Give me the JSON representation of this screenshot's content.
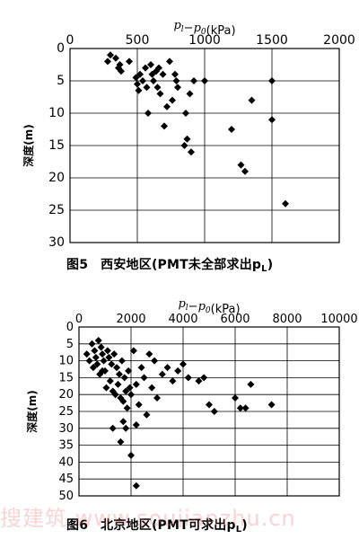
{
  "watermark": "搜建筑 www.soujianzhu.cn",
  "figures": [
    {
      "caption_number": "图5",
      "caption_text": "西安地区(PMT未全部求出p",
      "caption_sub": "L",
      "caption_close": ")"
    },
    {
      "caption_number": "图6",
      "caption_text": "北京地区(PMT可求出p",
      "caption_sub": "L",
      "caption_close": ")"
    }
  ],
  "chart_data": [
    {
      "type": "scatter",
      "title": "",
      "xlabel": "p_l − p_0 (kPa)",
      "ylabel": "深度(m)",
      "xlim": [
        0,
        2000
      ],
      "ylim": [
        0,
        30
      ],
      "y_inverted": true,
      "x_ticks": [
        0,
        500,
        1000,
        1500,
        2000
      ],
      "y_ticks": [
        0,
        5,
        10,
        15,
        20,
        25,
        30
      ],
      "grid": true,
      "x_axis_position": "top",
      "marker": "diamond",
      "x": [
        280,
        300,
        340,
        360,
        370,
        380,
        440,
        490,
        500,
        510,
        520,
        540,
        560,
        570,
        580,
        600,
        610,
        620,
        640,
        650,
        660,
        670,
        690,
        700,
        720,
        740,
        760,
        780,
        790,
        800,
        850,
        860,
        870,
        890,
        900,
        920,
        1000,
        1200,
        1270,
        1300,
        1350,
        1500,
        1500,
        1600
      ],
      "y": [
        2,
        1,
        1.5,
        3,
        2.5,
        3.5,
        2,
        4.5,
        5.5,
        6.5,
        4,
        5,
        3,
        6,
        10,
        2.5,
        4,
        5,
        3.5,
        6,
        3,
        7,
        4,
        12,
        9,
        2,
        8,
        4,
        5,
        6,
        15,
        10,
        14,
        7,
        16,
        5,
        5,
        12.5,
        18,
        19,
        8,
        5,
        11,
        24
      ]
    },
    {
      "type": "scatter",
      "title": "",
      "xlabel": "p_l − p_0 (kPa)",
      "ylabel": "深度(m)",
      "xlim": [
        0,
        10000
      ],
      "ylim": [
        0,
        50
      ],
      "y_inverted": true,
      "x_ticks": [
        0,
        2000,
        4000,
        6000,
        8000,
        10000
      ],
      "y_ticks": [
        0,
        5,
        10,
        15,
        20,
        25,
        30,
        35,
        40,
        45,
        50
      ],
      "grid": true,
      "x_axis_position": "top",
      "marker": "diamond",
      "x": [
        300,
        400,
        500,
        550,
        600,
        650,
        700,
        750,
        800,
        850,
        900,
        950,
        1000,
        1050,
        1100,
        1150,
        1200,
        1250,
        1300,
        1350,
        1400,
        1450,
        1500,
        1550,
        1600,
        1650,
        1700,
        1750,
        1800,
        1850,
        1900,
        1950,
        2000,
        2100,
        2200,
        2300,
        2400,
        2500,
        2600,
        2700,
        2800,
        2900,
        3000,
        3200,
        3400,
        3600,
        3800,
        4000,
        4200,
        4600,
        4800,
        5000,
        5200,
        6000,
        6200,
        6400,
        6600,
        7400,
        1300,
        1600,
        2000,
        2200,
        1800,
        900,
        1700,
        2200
      ],
      "y": [
        8,
        10,
        5,
        12,
        7,
        9,
        11,
        4,
        14,
        6,
        8,
        10,
        13,
        18,
        7,
        9,
        16,
        11,
        19,
        8,
        20,
        12,
        17,
        14,
        21,
        10,
        22,
        15,
        19,
        24,
        13,
        18,
        20,
        7,
        17,
        23,
        12,
        15,
        26,
        8,
        18,
        10,
        21,
        14,
        12,
        16,
        13,
        11,
        15,
        16,
        15,
        23,
        25,
        21,
        24,
        24,
        17,
        23,
        30,
        34,
        38,
        47,
        30,
        13,
        28,
        29
      ]
    }
  ]
}
